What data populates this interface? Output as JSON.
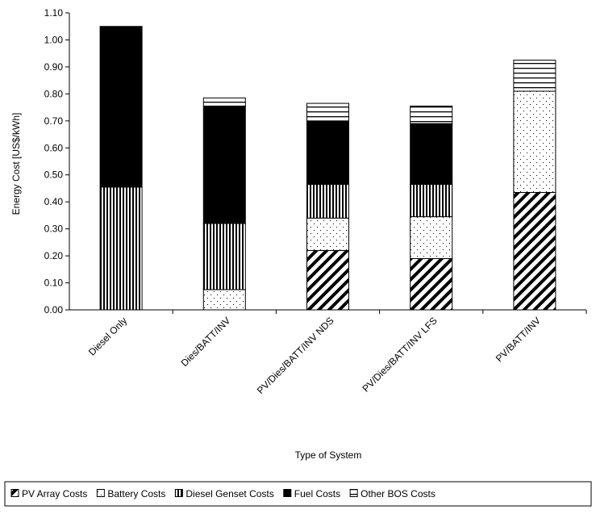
{
  "chart_data": {
    "type": "bar",
    "stacked": true,
    "title": "",
    "xlabel": "Type of System",
    "ylabel": "Energy Cost [US$/kWh]",
    "ylim": [
      0,
      1.1
    ],
    "ytick_step": 0.1,
    "yticks": [
      "0.00",
      "0.10",
      "0.20",
      "0.30",
      "0.40",
      "0.50",
      "0.60",
      "0.70",
      "0.80",
      "0.90",
      "1.00",
      "1.10"
    ],
    "grid": false,
    "legend_position": "bottom",
    "categories": [
      "Diesel Only",
      "Dies/BATT/INV",
      "PV/Dies/BATT/INV NDS",
      "PV/Dies/BATT/INV LFS",
      "PV/BATT/INV"
    ],
    "series": [
      {
        "name": "PV Array Costs",
        "pattern": "diagonal-hatch",
        "values": [
          0,
          0,
          0.22,
          0.19,
          0.435
        ]
      },
      {
        "name": "Battery Costs",
        "pattern": "dots",
        "values": [
          0,
          0.075,
          0.12,
          0.155,
          0.375
        ]
      },
      {
        "name": "Diesel Genset Costs",
        "pattern": "vertical-lines",
        "values": [
          0.455,
          0.245,
          0.125,
          0.12,
          0
        ]
      },
      {
        "name": "Fuel Costs",
        "pattern": "solid-black",
        "values": [
          0.595,
          0.435,
          0.235,
          0.225,
          0
        ]
      },
      {
        "name": "Other BOS Costs",
        "pattern": "horizontal-lines",
        "values": [
          0,
          0.03,
          0.065,
          0.065,
          0.115
        ]
      }
    ]
  }
}
